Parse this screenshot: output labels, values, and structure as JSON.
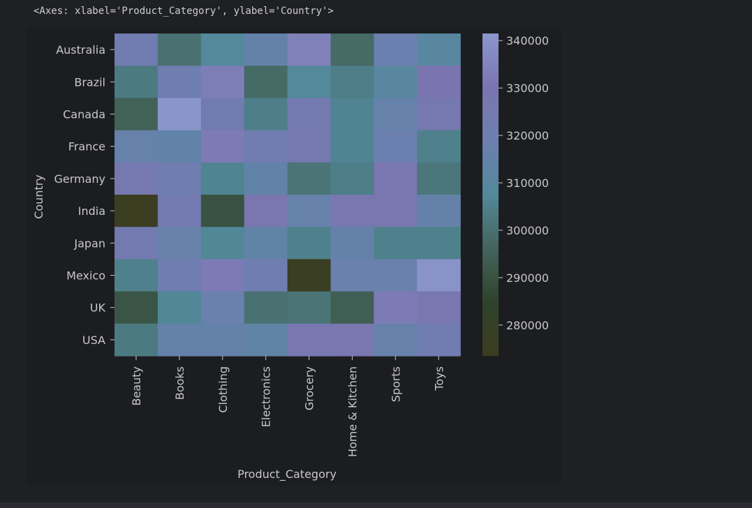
{
  "cell_repr": "<Axes: xlabel='Product_Category', ylabel='Country'>",
  "chart_data": {
    "type": "heatmap",
    "xlabel": "Product_Category",
    "ylabel": "Country",
    "x_categories": [
      "Beauty",
      "Books",
      "Clothing",
      "Electronics",
      "Grocery",
      "Home & Kitchen",
      "Sports",
      "Toys"
    ],
    "y_categories": [
      "Australia",
      "Brazil",
      "Canada",
      "France",
      "Germany",
      "India",
      "Japan",
      "Mexico",
      "UK",
      "USA"
    ],
    "values": [
      [
        322000,
        300000,
        308000,
        315000,
        334000,
        298000,
        318000,
        310000
      ],
      [
        303000,
        320000,
        333000,
        298000,
        308000,
        304000,
        310000,
        330000
      ],
      [
        295000,
        341000,
        323000,
        304000,
        324000,
        306000,
        316000,
        327000
      ],
      [
        316000,
        314000,
        332000,
        322000,
        325000,
        306000,
        318000,
        305000
      ],
      [
        327000,
        321000,
        306000,
        314000,
        301000,
        304000,
        329000,
        302000
      ],
      [
        275000,
        324000,
        290000,
        329000,
        316000,
        328000,
        328000,
        315000
      ],
      [
        324000,
        316000,
        307000,
        313000,
        305000,
        315000,
        305000,
        305000
      ],
      [
        305000,
        321000,
        332000,
        321000,
        276000,
        317000,
        317000,
        340000
      ],
      [
        291000,
        307000,
        317000,
        300000,
        301000,
        294000,
        332000,
        328000
      ],
      [
        303000,
        315000,
        315000,
        313000,
        328000,
        329000,
        316000,
        322000
      ]
    ],
    "vmin": 273500,
    "vmax": 341500,
    "colorbar_ticks": [
      340000,
      330000,
      320000,
      310000,
      300000,
      290000,
      280000
    ],
    "colormap": [
      "#3d3d1f",
      "#2f432c",
      "#44645c",
      "#52899a",
      "#6d7fb0",
      "#7a75b0",
      "#8b97cc"
    ]
  }
}
